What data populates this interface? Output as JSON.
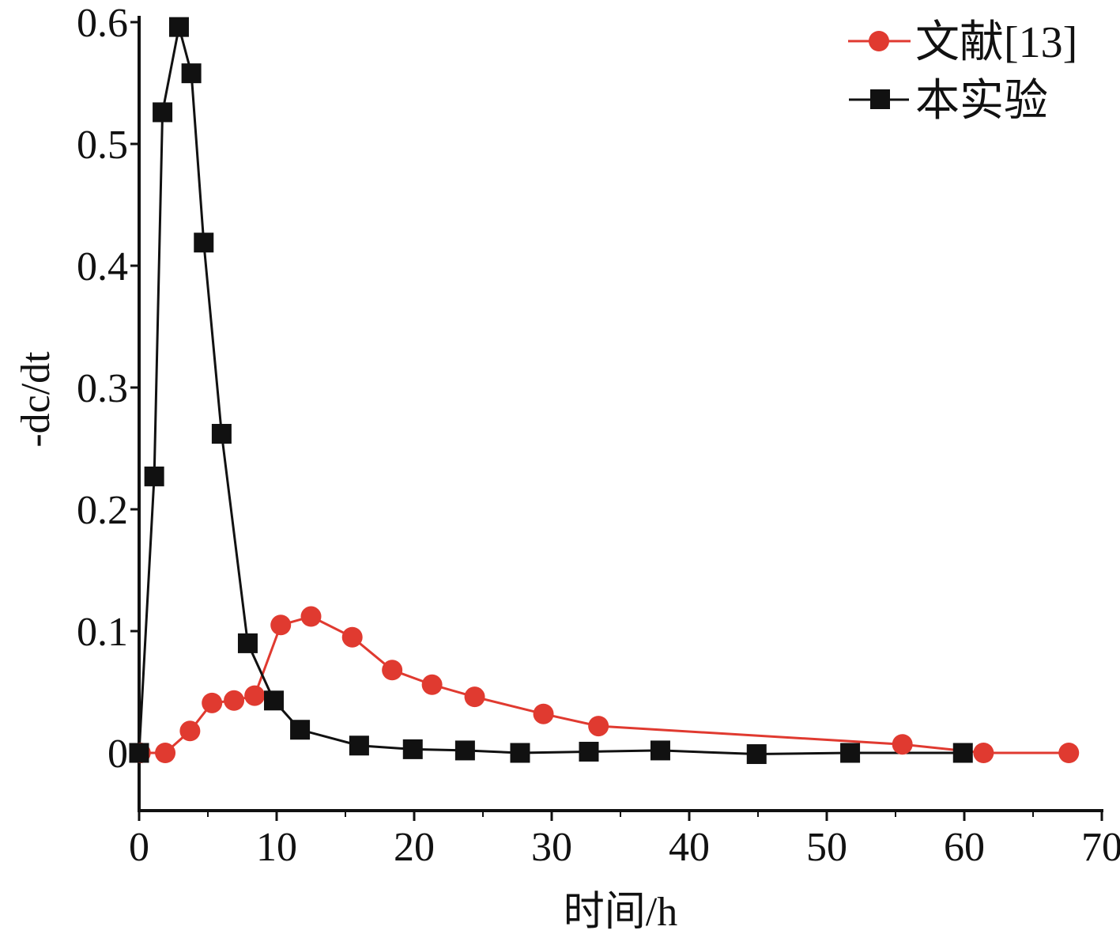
{
  "chart_data": {
    "type": "line",
    "xlabel": "时间/h",
    "ylabel": "-dc/dt",
    "xlim": [
      0,
      70
    ],
    "ylim": [
      -0.047,
      0.605
    ],
    "xticks": [
      0,
      10,
      20,
      30,
      40,
      50,
      60,
      70
    ],
    "xtick_labels": [
      "0",
      "10",
      "20",
      "30",
      "40",
      "50",
      "60",
      "70"
    ],
    "yticks": [
      0,
      0.1,
      0.2,
      0.3,
      0.4,
      0.5,
      0.6
    ],
    "ytick_labels": [
      "0",
      "0.1",
      "0.2",
      "0.3",
      "0.4",
      "0.5",
      "0.6"
    ],
    "grid": false,
    "legend_position": "top-right",
    "series": [
      {
        "name": "文献[13]",
        "color": "#e03a30",
        "marker": "circle",
        "x": [
          0.1,
          1.9,
          3.7,
          5.3,
          6.9,
          8.4,
          10.3,
          12.5,
          15.5,
          18.4,
          21.3,
          24.4,
          29.4,
          33.4,
          55.5,
          61.4,
          67.6
        ],
        "y": [
          0,
          0,
          0.018,
          0.041,
          0.043,
          0.047,
          0.105,
          0.112,
          0.095,
          0.068,
          0.056,
          0.046,
          0.032,
          0.022,
          0.007,
          0,
          0
        ]
      },
      {
        "name": "本实验",
        "color": "#111111",
        "marker": "square",
        "x": [
          0,
          1.1,
          1.7,
          2.9,
          3.8,
          4.7,
          6.0,
          7.9,
          9.8,
          11.7,
          16.0,
          19.9,
          23.7,
          27.7,
          32.7,
          37.9,
          44.9,
          51.7,
          59.9
        ],
        "y": [
          0,
          0.227,
          0.526,
          0.596,
          0.558,
          0.419,
          0.262,
          0.09,
          0.043,
          0.019,
          0.006,
          0.003,
          0.002,
          0.0,
          0.001,
          0.002,
          -0.001,
          0,
          0
        ]
      }
    ]
  }
}
